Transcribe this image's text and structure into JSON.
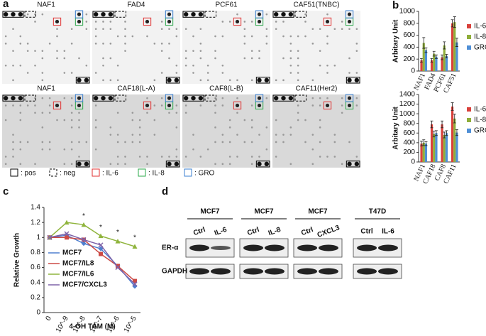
{
  "panel_labels": [
    "a",
    "b",
    "c",
    "d"
  ],
  "arrays": {
    "top": [
      "NAF1",
      "FAD4",
      "PCF61",
      "CAF51(TNBC)"
    ],
    "bottom": [
      "NAF1",
      "CAF18(L-A)",
      "CAF8(L-B)",
      "CAF11(Her2)"
    ]
  },
  "array_legend": [
    ": pos",
    ": neg",
    ": IL-6",
    ": IL-8",
    ": GRO"
  ],
  "chart_data": [
    {
      "type": "bar",
      "ylabel": "Arbitary Unit",
      "categories": [
        "NAF1",
        "FAD4",
        "PCF61",
        "CAF51"
      ],
      "series": [
        {
          "name": "IL-6",
          "color": "#d9413b",
          "values": [
            180,
            180,
            230,
            800
          ],
          "errors": [
            30,
            30,
            40,
            60
          ]
        },
        {
          "name": "IL-8",
          "color": "#8fae3a",
          "values": [
            470,
            290,
            430,
            820
          ],
          "errors": [
            90,
            40,
            60,
            90
          ]
        },
        {
          "name": "GRO",
          "color": "#4f8fd6",
          "values": [
            350,
            240,
            250,
            480
          ],
          "errors": [
            40,
            30,
            30,
            70
          ]
        }
      ],
      "ylim": [
        0,
        1000
      ],
      "yticks": [
        0,
        200,
        400,
        600,
        800,
        1000
      ]
    },
    {
      "type": "bar",
      "ylabel": "Arbitary Unit",
      "categories": [
        "NAF1",
        "CAF18",
        "CAF8",
        "CAF11"
      ],
      "series": [
        {
          "name": "IL-6",
          "color": "#d9413b",
          "values": [
            380,
            780,
            780,
            1150
          ],
          "errors": [
            50,
            70,
            70,
            80
          ]
        },
        {
          "name": "IL-8",
          "color": "#8fae3a",
          "values": [
            400,
            580,
            560,
            900
          ],
          "errors": [
            60,
            60,
            60,
            90
          ]
        },
        {
          "name": "GRO",
          "color": "#4f8fd6",
          "values": [
            380,
            600,
            600,
            610
          ],
          "errors": [
            40,
            50,
            50,
            60
          ]
        }
      ],
      "ylim": [
        0,
        1400
      ],
      "yticks": [
        0,
        200,
        400,
        600,
        800,
        1000,
        1200,
        1400
      ]
    },
    {
      "type": "line",
      "ylabel": "Relative Growth",
      "xlabel": "4-OH TAM (M)",
      "categories": [
        "0",
        "10^-9",
        "10^-8",
        "10^-7",
        "10^-6",
        "10^-5"
      ],
      "series": [
        {
          "name": "MCF7",
          "color": "#4f7fcf",
          "marker": "diamond",
          "values": [
            1,
            1.03,
            0.92,
            0.85,
            0.62,
            0.35
          ]
        },
        {
          "name": "MCF7/IL8",
          "color": "#cc4a45",
          "marker": "square",
          "values": [
            1,
            1.0,
            0.97,
            0.78,
            0.62,
            0.42
          ]
        },
        {
          "name": "MCF7/IL6",
          "color": "#8fb43c",
          "marker": "triangle",
          "values": [
            1,
            1.2,
            1.17,
            1.02,
            0.95,
            0.88
          ]
        },
        {
          "name": "MCF7/CXCL3",
          "color": "#7e62a8",
          "marker": "cross",
          "values": [
            1,
            1.05,
            0.97,
            0.9,
            0.6,
            0.38
          ]
        }
      ],
      "ylim": [
        0,
        1.4
      ],
      "yticks": [
        0,
        0.2,
        0.4,
        0.6,
        0.8,
        1,
        1.2,
        1.4
      ],
      "annotations": [
        {
          "text": "*",
          "x": "10^-8"
        },
        {
          "text": "*",
          "x": "10^-7"
        },
        {
          "text": "*",
          "x": "10^-6"
        },
        {
          "text": "*",
          "x": "10^-5"
        }
      ]
    }
  ],
  "blots": {
    "groups": [
      {
        "cell": "MCF7",
        "lanes": [
          "Ctrl",
          "IL-6"
        ]
      },
      {
        "cell": "MCF7",
        "lanes": [
          "Ctrl",
          "IL-8"
        ]
      },
      {
        "cell": "MCF7",
        "lanes": [
          "Ctrl",
          "CXCL3"
        ]
      },
      {
        "cell": "T47D",
        "lanes": [
          "Ctrl",
          "IL-6"
        ]
      }
    ],
    "rows": [
      "ER-α",
      "GAPDH"
    ]
  }
}
